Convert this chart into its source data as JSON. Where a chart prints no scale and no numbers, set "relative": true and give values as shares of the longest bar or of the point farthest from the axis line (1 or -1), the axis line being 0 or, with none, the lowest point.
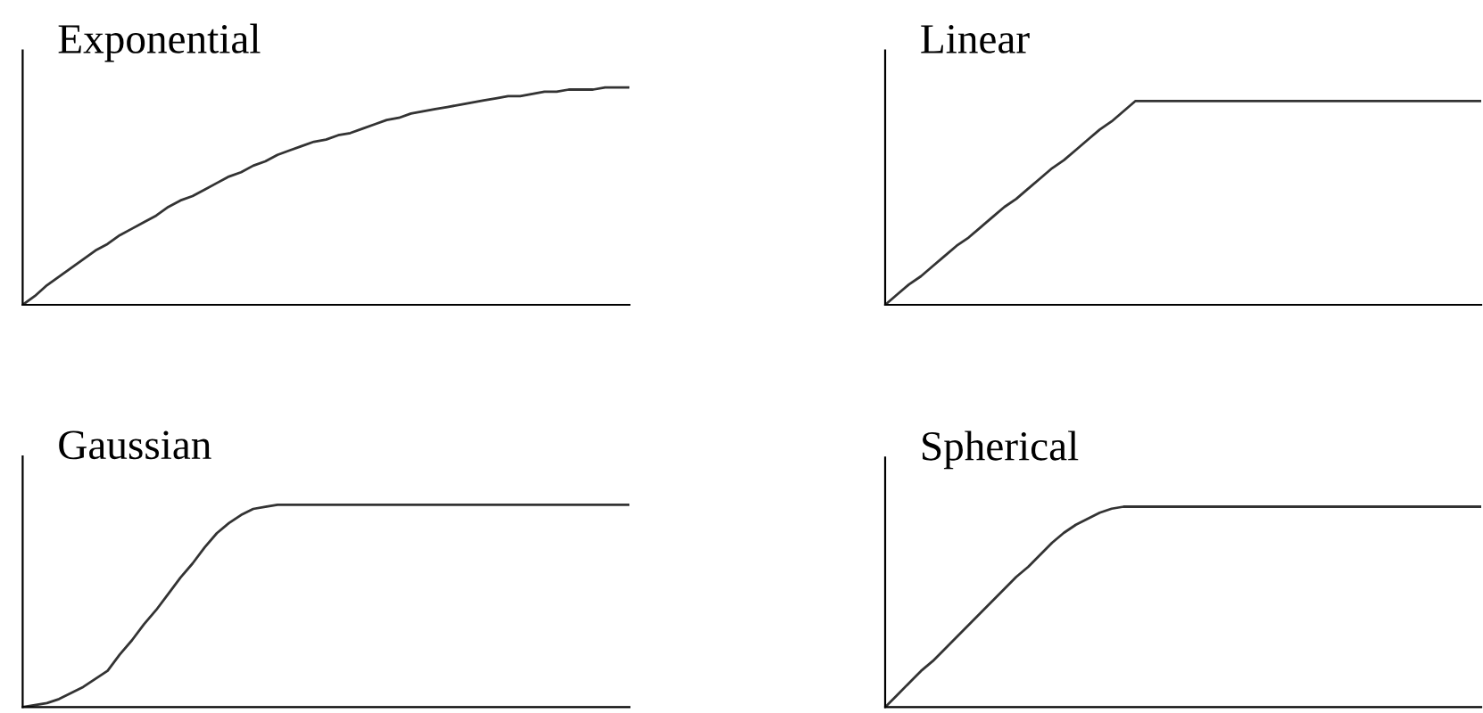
{
  "chart_data": [
    {
      "type": "line",
      "title": "Exponential",
      "relative": true,
      "categories": [
        null,
        null,
        null,
        null,
        null,
        null,
        null,
        null,
        null,
        null,
        null,
        null,
        null,
        null,
        null,
        null,
        null,
        null,
        null,
        null,
        null,
        null,
        null,
        null,
        null,
        null,
        null,
        null,
        null,
        null,
        null,
        null,
        null,
        null,
        null,
        null,
        null,
        null,
        null,
        null,
        null,
        null,
        null,
        null,
        null,
        null,
        null,
        null,
        null,
        null,
        null
      ],
      "series": [
        {
          "color": "#333333",
          "values": [
            0,
            0.04,
            0.09,
            0.13,
            0.17,
            0.21,
            0.25,
            0.28,
            0.32,
            0.35,
            0.38,
            0.41,
            0.45,
            0.48,
            0.5,
            0.53,
            0.56,
            0.59,
            0.61,
            0.64,
            0.66,
            0.69,
            0.71,
            0.73,
            0.75,
            0.76,
            0.78,
            0.79,
            0.81,
            0.83,
            0.85,
            0.86,
            0.88,
            0.89,
            0.9,
            0.91,
            0.92,
            0.93,
            0.94,
            0.95,
            0.96,
            0.96,
            0.97,
            0.98,
            0.98,
            0.99,
            0.99,
            0.99,
            1,
            1,
            1
          ]
        }
      ]
    },
    {
      "type": "line",
      "title": "Linear",
      "relative": true,
      "categories": [
        null,
        null,
        null,
        null,
        null,
        null,
        null,
        null,
        null,
        null,
        null,
        null,
        null,
        null,
        null,
        null,
        null,
        null,
        null,
        null,
        null,
        null,
        null,
        null,
        null,
        null,
        null,
        null,
        null,
        null,
        null,
        null,
        null,
        null,
        null,
        null,
        null,
        null,
        null,
        null,
        null,
        null,
        null,
        null,
        null,
        null,
        null,
        null,
        null,
        null,
        null
      ],
      "series": [
        {
          "color": "#333333",
          "values": [
            0,
            0.05,
            0.1,
            0.14,
            0.19,
            0.24,
            0.29,
            0.33,
            0.38,
            0.43,
            0.48,
            0.52,
            0.57,
            0.62,
            0.67,
            0.71,
            0.76,
            0.81,
            0.86,
            0.9,
            0.95,
            1,
            1,
            1,
            1,
            1,
            1,
            1,
            1,
            1,
            1,
            1,
            1,
            1,
            1,
            1,
            1,
            1,
            1,
            1,
            1,
            1,
            1,
            1,
            1,
            1,
            1,
            1,
            1,
            1,
            1
          ]
        }
      ]
    },
    {
      "type": "line",
      "title": "Gaussian",
      "relative": true,
      "categories": [
        null,
        null,
        null,
        null,
        null,
        null,
        null,
        null,
        null,
        null,
        null,
        null,
        null,
        null,
        null,
        null,
        null,
        null,
        null,
        null,
        null,
        null,
        null,
        null,
        null,
        null,
        null,
        null,
        null,
        null,
        null,
        null,
        null,
        null,
        null,
        null,
        null,
        null,
        null,
        null,
        null,
        null,
        null,
        null,
        null,
        null,
        null,
        null,
        null,
        null,
        null
      ],
      "series": [
        {
          "color": "#333333",
          "values": [
            0,
            0.01,
            0.02,
            0.04,
            0.07,
            0.1,
            0.14,
            0.18,
            0.26,
            0.33,
            0.41,
            0.48,
            0.56,
            0.64,
            0.71,
            0.79,
            0.86,
            0.91,
            0.95,
            0.98,
            0.99,
            1,
            1,
            1,
            1,
            1,
            1,
            1,
            1,
            1,
            1,
            1,
            1,
            1,
            1,
            1,
            1,
            1,
            1,
            1,
            1,
            1,
            1,
            1,
            1,
            1,
            1,
            1,
            1,
            1,
            1
          ]
        }
      ]
    },
    {
      "type": "line",
      "title": "Spherical",
      "relative": true,
      "categories": [
        null,
        null,
        null,
        null,
        null,
        null,
        null,
        null,
        null,
        null,
        null,
        null,
        null,
        null,
        null,
        null,
        null,
        null,
        null,
        null,
        null,
        null,
        null,
        null,
        null,
        null,
        null,
        null,
        null,
        null,
        null,
        null,
        null,
        null,
        null,
        null,
        null,
        null,
        null,
        null,
        null,
        null,
        null,
        null,
        null,
        null,
        null,
        null,
        null,
        null,
        null
      ],
      "series": [
        {
          "color": "#333333",
          "values": [
            0,
            0.06,
            0.12,
            0.18,
            0.23,
            0.29,
            0.35,
            0.41,
            0.47,
            0.53,
            0.59,
            0.65,
            0.7,
            0.76,
            0.82,
            0.87,
            0.91,
            0.94,
            0.97,
            0.99,
            1,
            1,
            1,
            1,
            1,
            1,
            1,
            1,
            1,
            1,
            1,
            1,
            1,
            1,
            1,
            1,
            1,
            1,
            1,
            1,
            1,
            1,
            1,
            1,
            1,
            1,
            1,
            1,
            1,
            1,
            1
          ]
        }
      ]
    }
  ]
}
